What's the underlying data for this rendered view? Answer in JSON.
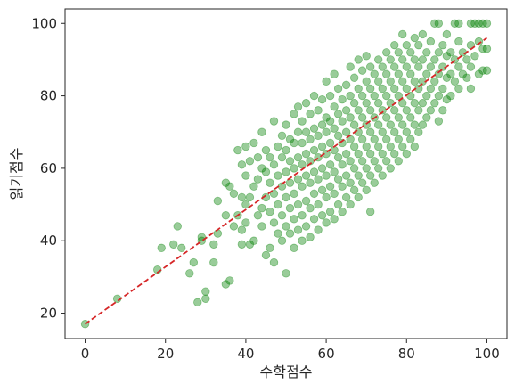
{
  "chart_data": {
    "type": "scatter",
    "title": "",
    "xlabel": "수학점수",
    "ylabel": "읽기점수",
    "xlim": [
      -5,
      105
    ],
    "ylim": [
      13,
      104
    ],
    "xticks": [
      0,
      20,
      40,
      60,
      80,
      100
    ],
    "yticks": [
      20,
      40,
      60,
      80,
      100
    ],
    "grid": false,
    "legend": "none",
    "point_color": "#008000",
    "point_alpha": 0.4,
    "trend_color": "#d62728",
    "series": [
      {
        "points": [
          [
            0,
            17
          ],
          [
            8,
            24
          ],
          [
            18,
            32
          ],
          [
            19,
            38
          ],
          [
            22,
            39
          ],
          [
            23,
            44
          ],
          [
            24,
            38
          ],
          [
            26,
            31
          ],
          [
            27,
            34
          ],
          [
            28,
            23
          ],
          [
            29,
            41
          ],
          [
            29,
            40
          ],
          [
            30,
            24
          ],
          [
            30,
            26
          ],
          [
            32,
            34
          ],
          [
            32,
            39
          ],
          [
            33,
            42
          ],
          [
            33,
            51
          ],
          [
            35,
            28
          ],
          [
            35,
            47
          ],
          [
            35,
            56
          ],
          [
            36,
            29
          ],
          [
            36,
            55
          ],
          [
            37,
            44
          ],
          [
            37,
            53
          ],
          [
            38,
            47
          ],
          [
            38,
            65
          ],
          [
            39,
            39
          ],
          [
            39,
            43
          ],
          [
            39,
            52
          ],
          [
            39,
            61
          ],
          [
            40,
            45
          ],
          [
            40,
            50
          ],
          [
            40,
            58
          ],
          [
            40,
            66
          ],
          [
            41,
            39
          ],
          [
            41,
            52
          ],
          [
            41,
            62
          ],
          [
            42,
            40
          ],
          [
            42,
            55
          ],
          [
            42,
            67
          ],
          [
            43,
            47
          ],
          [
            43,
            57
          ],
          [
            43,
            63
          ],
          [
            44,
            44
          ],
          [
            44,
            49
          ],
          [
            44,
            60
          ],
          [
            44,
            70
          ],
          [
            45,
            36
          ],
          [
            45,
            52
          ],
          [
            45,
            59
          ],
          [
            45,
            65
          ],
          [
            46,
            38
          ],
          [
            46,
            48
          ],
          [
            46,
            56
          ],
          [
            46,
            63
          ],
          [
            47,
            34
          ],
          [
            47,
            45
          ],
          [
            47,
            53
          ],
          [
            47,
            61
          ],
          [
            47,
            73
          ],
          [
            48,
            42
          ],
          [
            48,
            50
          ],
          [
            48,
            58
          ],
          [
            48,
            66
          ],
          [
            49,
            40
          ],
          [
            49,
            47
          ],
          [
            49,
            55
          ],
          [
            49,
            63
          ],
          [
            49,
            69
          ],
          [
            50,
            31
          ],
          [
            50,
            44
          ],
          [
            50,
            52
          ],
          [
            50,
            59
          ],
          [
            50,
            65
          ],
          [
            50,
            72
          ],
          [
            51,
            42
          ],
          [
            51,
            49
          ],
          [
            51,
            56
          ],
          [
            51,
            62
          ],
          [
            51,
            68
          ],
          [
            52,
            38
          ],
          [
            52,
            46
          ],
          [
            52,
            53
          ],
          [
            52,
            60
          ],
          [
            52,
            67
          ],
          [
            52,
            75
          ],
          [
            53,
            43
          ],
          [
            53,
            50
          ],
          [
            53,
            57
          ],
          [
            53,
            63
          ],
          [
            53,
            70
          ],
          [
            53,
            77
          ],
          [
            54,
            40
          ],
          [
            54,
            47
          ],
          [
            54,
            55
          ],
          [
            54,
            61
          ],
          [
            54,
            67
          ],
          [
            54,
            73
          ],
          [
            55,
            44
          ],
          [
            55,
            51
          ],
          [
            55,
            58
          ],
          [
            55,
            64
          ],
          [
            55,
            70
          ],
          [
            55,
            78
          ],
          [
            56,
            41
          ],
          [
            56,
            49
          ],
          [
            56,
            56
          ],
          [
            56,
            62
          ],
          [
            56,
            68
          ],
          [
            56,
            75
          ],
          [
            57,
            46
          ],
          [
            57,
            53
          ],
          [
            57,
            59
          ],
          [
            57,
            65
          ],
          [
            57,
            71
          ],
          [
            57,
            80
          ],
          [
            58,
            43
          ],
          [
            58,
            50
          ],
          [
            58,
            57
          ],
          [
            58,
            63
          ],
          [
            58,
            69
          ],
          [
            58,
            76
          ],
          [
            59,
            47
          ],
          [
            59,
            54
          ],
          [
            59,
            60
          ],
          [
            59,
            66
          ],
          [
            59,
            72
          ],
          [
            59,
            79
          ],
          [
            60,
            45
          ],
          [
            60,
            52
          ],
          [
            60,
            58
          ],
          [
            60,
            64
          ],
          [
            60,
            70
          ],
          [
            60,
            74
          ],
          [
            60,
            84
          ],
          [
            61,
            48
          ],
          [
            61,
            55
          ],
          [
            61,
            61
          ],
          [
            61,
            67
          ],
          [
            61,
            73
          ],
          [
            61,
            80
          ],
          [
            62,
            46
          ],
          [
            62,
            53
          ],
          [
            62,
            59
          ],
          [
            62,
            65
          ],
          [
            62,
            71
          ],
          [
            62,
            77
          ],
          [
            62,
            86
          ],
          [
            63,
            50
          ],
          [
            63,
            57
          ],
          [
            63,
            63
          ],
          [
            63,
            69
          ],
          [
            63,
            75
          ],
          [
            63,
            82
          ],
          [
            64,
            48
          ],
          [
            64,
            55
          ],
          [
            64,
            61
          ],
          [
            64,
            67
          ],
          [
            64,
            73
          ],
          [
            64,
            79
          ],
          [
            65,
            52
          ],
          [
            65,
            58
          ],
          [
            65,
            64
          ],
          [
            65,
            70
          ],
          [
            65,
            76
          ],
          [
            65,
            83
          ],
          [
            66,
            50
          ],
          [
            66,
            56
          ],
          [
            66,
            62
          ],
          [
            66,
            68
          ],
          [
            66,
            74
          ],
          [
            66,
            80
          ],
          [
            66,
            88
          ],
          [
            67,
            54
          ],
          [
            67,
            60
          ],
          [
            67,
            66
          ],
          [
            67,
            72
          ],
          [
            67,
            78
          ],
          [
            67,
            85
          ],
          [
            68,
            52
          ],
          [
            68,
            58
          ],
          [
            68,
            64
          ],
          [
            68,
            70
          ],
          [
            68,
            76
          ],
          [
            68,
            82
          ],
          [
            68,
            90
          ],
          [
            69,
            56
          ],
          [
            69,
            62
          ],
          [
            69,
            68
          ],
          [
            69,
            74
          ],
          [
            69,
            80
          ],
          [
            69,
            87
          ],
          [
            70,
            54
          ],
          [
            70,
            60
          ],
          [
            70,
            66
          ],
          [
            70,
            72
          ],
          [
            70,
            78
          ],
          [
            70,
            84
          ],
          [
            70,
            91
          ],
          [
            71,
            48
          ],
          [
            71,
            58
          ],
          [
            71,
            64
          ],
          [
            71,
            70
          ],
          [
            71,
            76
          ],
          [
            71,
            82
          ],
          [
            71,
            88
          ],
          [
            72,
            56
          ],
          [
            72,
            62
          ],
          [
            72,
            68
          ],
          [
            72,
            74
          ],
          [
            72,
            80
          ],
          [
            72,
            86
          ],
          [
            73,
            60
          ],
          [
            73,
            66
          ],
          [
            73,
            72
          ],
          [
            73,
            78
          ],
          [
            73,
            84
          ],
          [
            73,
            90
          ],
          [
            74,
            58
          ],
          [
            74,
            64
          ],
          [
            74,
            70
          ],
          [
            74,
            76
          ],
          [
            74,
            82
          ],
          [
            74,
            88
          ],
          [
            75,
            62
          ],
          [
            75,
            68
          ],
          [
            75,
            74
          ],
          [
            75,
            80
          ],
          [
            75,
            86
          ],
          [
            75,
            92
          ],
          [
            76,
            60
          ],
          [
            76,
            66
          ],
          [
            76,
            72
          ],
          [
            76,
            78
          ],
          [
            76,
            84
          ],
          [
            76,
            90
          ],
          [
            77,
            64
          ],
          [
            77,
            70
          ],
          [
            77,
            76
          ],
          [
            77,
            82
          ],
          [
            77,
            88
          ],
          [
            77,
            94
          ],
          [
            78,
            62
          ],
          [
            78,
            68
          ],
          [
            78,
            74
          ],
          [
            78,
            80
          ],
          [
            78,
            86
          ],
          [
            78,
            92
          ],
          [
            79,
            66
          ],
          [
            79,
            72
          ],
          [
            79,
            78
          ],
          [
            79,
            84
          ],
          [
            79,
            90
          ],
          [
            79,
            97
          ],
          [
            80,
            64
          ],
          [
            80,
            70
          ],
          [
            80,
            76
          ],
          [
            80,
            82
          ],
          [
            80,
            88
          ],
          [
            80,
            94
          ],
          [
            81,
            68
          ],
          [
            81,
            74
          ],
          [
            81,
            80
          ],
          [
            81,
            86
          ],
          [
            81,
            92
          ],
          [
            82,
            66
          ],
          [
            82,
            72
          ],
          [
            82,
            78
          ],
          [
            82,
            84
          ],
          [
            82,
            90
          ],
          [
            82,
            96
          ],
          [
            83,
            70
          ],
          [
            83,
            76
          ],
          [
            83,
            82
          ],
          [
            83,
            88
          ],
          [
            83,
            94
          ],
          [
            84,
            72
          ],
          [
            84,
            78
          ],
          [
            84,
            84
          ],
          [
            84,
            90
          ],
          [
            84,
            97
          ],
          [
            85,
            74
          ],
          [
            85,
            80
          ],
          [
            85,
            86
          ],
          [
            85,
            92
          ],
          [
            86,
            76
          ],
          [
            86,
            82
          ],
          [
            86,
            88
          ],
          [
            86,
            95
          ],
          [
            87,
            78
          ],
          [
            87,
            84
          ],
          [
            87,
            90
          ],
          [
            87,
            100
          ],
          [
            88,
            73
          ],
          [
            88,
            80
          ],
          [
            88,
            86
          ],
          [
            88,
            92
          ],
          [
            88,
            100
          ],
          [
            89,
            76
          ],
          [
            89,
            82
          ],
          [
            89,
            88
          ],
          [
            89,
            94
          ],
          [
            90,
            79
          ],
          [
            90,
            85
          ],
          [
            90,
            91
          ],
          [
            90,
            97
          ],
          [
            91,
            80
          ],
          [
            91,
            86
          ],
          [
            91,
            92
          ],
          [
            92,
            84
          ],
          [
            92,
            90
          ],
          [
            92,
            100
          ],
          [
            93,
            82
          ],
          [
            93,
            88
          ],
          [
            93,
            95
          ],
          [
            93,
            100
          ],
          [
            94,
            86
          ],
          [
            94,
            92
          ],
          [
            95,
            85
          ],
          [
            95,
            90
          ],
          [
            96,
            82
          ],
          [
            96,
            88
          ],
          [
            96,
            94
          ],
          [
            96,
            100
          ],
          [
            97,
            91
          ],
          [
            97,
            100
          ],
          [
            98,
            86
          ],
          [
            98,
            95
          ],
          [
            98,
            100
          ],
          [
            99,
            87
          ],
          [
            99,
            93
          ],
          [
            99,
            100
          ],
          [
            100,
            87
          ],
          [
            100,
            93
          ],
          [
            100,
            100
          ]
        ]
      }
    ],
    "trend_line": {
      "x": [
        0,
        100
      ],
      "y": [
        17,
        96
      ]
    }
  }
}
